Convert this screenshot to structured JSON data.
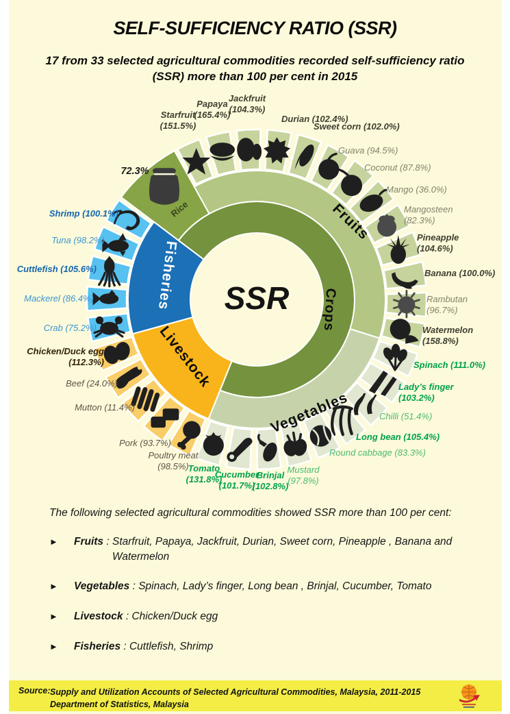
{
  "title": "SELF-SUFFICIENCY RATIO (SSR)",
  "subtitle": "17 from 33 selected agricultural commodities recorded self-sufficiency ratio (SSR) more than 100 per cent in 2015",
  "colors": {
    "background": "#FCFADA",
    "footer_bar": "#F3ED46",
    "crops_ring": "#75923E",
    "rice_sector": "#87A446",
    "fruits_ring": "#B3C683",
    "fruits_cell": "#C6D39C",
    "vegetables_ring": "#C6D3AA",
    "vegetables_cell": "#E1E7D0",
    "livestock_sector": "#F8B41A",
    "livestock_cell": "#F9CD67",
    "fisheries_sector": "#1B70B6",
    "fisheries_cell": "#57C1F0",
    "icon_silhouette": "#1F1F1F"
  },
  "chart_data": {
    "type": "pie",
    "variant": "multi-ring donut infographic (sunburst)",
    "center_label": "SSR",
    "units": "% self-sufficiency ratio, 2015",
    "legend": "none",
    "label_style": "italic; bold when SSR is 100% or more",
    "inner_ring": [
      {
        "name": "Crops",
        "color": "#75923E",
        "label_color": "#0d0d0d"
      },
      {
        "name": "Livestock",
        "color": "#F8B41A",
        "label_color": "#0d0d0d"
      },
      {
        "name": "Fisheries",
        "color": "#1B70B6",
        "label_color": "#FFFFFF"
      }
    ],
    "rice": {
      "name": "Rice",
      "value": 72.3,
      "label": "72.3%",
      "sector_color": "#87A446",
      "icon": "rice-sack-icon"
    },
    "layout": {
      "start_angle_deg": -29,
      "cell_span_deg": 10.5,
      "rice_arc_deg": [
        -53,
        -29
      ]
    },
    "groups": [
      {
        "name": "Fruits",
        "ring_color": "#B3C683",
        "cell_color": "#C6D39C",
        "bold_text_color": "#3F3F31",
        "text_color": "#83836C",
        "items": [
          {
            "name": "Starfruit",
            "value": 151.5,
            "above_100": true,
            "icon": "starfruit-icon",
            "lines": [
              "Starfruit",
              "(151.5%)"
            ]
          },
          {
            "name": "Papaya",
            "value": 165.4,
            "above_100": true,
            "icon": "papaya-icon",
            "lines": [
              "Papaya",
              "(165.4%)"
            ]
          },
          {
            "name": "Jackfruit",
            "value": 104.3,
            "above_100": true,
            "icon": "jackfruit-icon",
            "lines": [
              "Jackfruit",
              "(104.3%)"
            ]
          },
          {
            "name": "Durian",
            "value": 102.4,
            "above_100": true,
            "icon": "durian-icon",
            "lines": [
              "Durian (102.4%)"
            ]
          },
          {
            "name": "Sweet corn",
            "value": 102.0,
            "above_100": true,
            "icon": "corn-icon",
            "lines": [
              "Sweet corn (102.0%)"
            ]
          },
          {
            "name": "Guava",
            "value": 94.5,
            "above_100": false,
            "icon": "guava-icon",
            "lines": [
              "Guava (94.5%)"
            ]
          },
          {
            "name": "Coconut",
            "value": 87.8,
            "above_100": false,
            "icon": "coconut-icon",
            "lines": [
              "Coconut (87.8%)"
            ]
          },
          {
            "name": "Mango",
            "value": 36.0,
            "above_100": false,
            "icon": "mango-icon",
            "lines": [
              "Mango (36.0%)"
            ]
          },
          {
            "name": "Mangosteen",
            "value": 82.3,
            "above_100": false,
            "icon": "mangosteen-icon",
            "lines": [
              "Mangosteen",
              "(82.3%)"
            ]
          },
          {
            "name": "Pineapple",
            "value": 104.6,
            "above_100": true,
            "icon": "pineapple-icon",
            "lines": [
              "Pineapple",
              "(104.6%)"
            ]
          },
          {
            "name": "Banana",
            "value": 100.0,
            "above_100": true,
            "icon": "banana-icon",
            "lines": [
              "Banana (100.0%)"
            ]
          },
          {
            "name": "Rambutan",
            "value": 96.7,
            "above_100": false,
            "icon": "rambutan-icon",
            "lines": [
              "Rambutan",
              "(96.7%)"
            ]
          },
          {
            "name": "Watermelon",
            "value": 158.8,
            "above_100": true,
            "icon": "watermelon-icon",
            "lines": [
              "Watermelon",
              "(158.8%)"
            ]
          }
        ]
      },
      {
        "name": "Vegetables",
        "ring_color": "#C6D3AA",
        "cell_color": "#E1E7D0",
        "bold_text_color": "#00A04E",
        "text_color": "#4DB972",
        "items": [
          {
            "name": "Spinach",
            "value": 111.0,
            "above_100": true,
            "icon": "spinach-icon",
            "lines": [
              "Spinach (111.0%)"
            ]
          },
          {
            "name": "Lady’s finger",
            "value": 103.2,
            "above_100": true,
            "icon": "ladys-finger-icon",
            "lines": [
              "Lady’s finger",
              "(103.2%)"
            ]
          },
          {
            "name": "Chilli",
            "value": 51.4,
            "above_100": false,
            "icon": "chilli-icon",
            "lines": [
              "Chilli (51.4%)"
            ]
          },
          {
            "name": "Long bean",
            "value": 105.4,
            "above_100": true,
            "icon": "long-bean-icon",
            "lines": [
              "Long bean (105.4%)"
            ]
          },
          {
            "name": "Round cabbage",
            "value": 83.3,
            "above_100": false,
            "icon": "cabbage-icon",
            "lines": [
              "Round cabbage (83.3%)"
            ]
          },
          {
            "name": "Mustard",
            "value": 97.8,
            "above_100": false,
            "icon": "mustard-icon",
            "lines": [
              "Mustard",
              "(97.8%)"
            ]
          },
          {
            "name": "Brinjal",
            "value": 102.8,
            "above_100": true,
            "icon": "brinjal-icon",
            "lines": [
              "Brinjal",
              "(102.8%)"
            ]
          },
          {
            "name": "Cucumber",
            "value": 101.7,
            "above_100": true,
            "icon": "cucumber-icon",
            "lines": [
              "Cucumber",
              "(101.7%)"
            ]
          },
          {
            "name": "Tomato",
            "value": 131.8,
            "above_100": true,
            "icon": "tomato-icon",
            "lines": [
              "Tomato",
              "(131.8%)"
            ]
          }
        ]
      },
      {
        "name": "Livestock",
        "ring_color": "#F8B41A",
        "cell_color": "#F9CD67",
        "bold_text_color": "#33230C",
        "text_color": "#5F5447",
        "items": [
          {
            "name": "Poultry meat",
            "value": 98.5,
            "above_100": false,
            "icon": "poultry-icon",
            "lines": [
              "Poultry meat",
              "(98.5%)"
            ]
          },
          {
            "name": "Pork",
            "value": 93.7,
            "above_100": false,
            "icon": "pork-icon",
            "lines": [
              "Pork (93.7%)"
            ]
          },
          {
            "name": "Mutton",
            "value": 11.4,
            "above_100": false,
            "icon": "mutton-icon",
            "lines": [
              "Mutton (11.4%)"
            ]
          },
          {
            "name": "Beef",
            "value": 24.0,
            "above_100": false,
            "icon": "beef-icon",
            "lines": [
              "Beef (24.0%)"
            ]
          },
          {
            "name": "Chicken/Duck egg",
            "value": 112.3,
            "above_100": true,
            "icon": "eggs-icon",
            "lines": [
              "Chicken/Duck egg",
              "(112.3%)"
            ]
          }
        ]
      },
      {
        "name": "Fisheries",
        "ring_color": "#1B70B6",
        "cell_color": "#57C1F0",
        "bold_text_color": "#1566B0",
        "text_color": "#3C95D1",
        "items": [
          {
            "name": "Crab",
            "value": 75.2,
            "above_100": false,
            "icon": "crab-icon",
            "lines": [
              "Crab (75.2%)"
            ]
          },
          {
            "name": "Mackerel",
            "value": 86.4,
            "above_100": false,
            "icon": "mackerel-icon",
            "lines": [
              "Mackerel (86.4%)"
            ]
          },
          {
            "name": "Cuttlefish",
            "value": 105.6,
            "above_100": true,
            "icon": "cuttlefish-icon",
            "lines": [
              "Cuttlefish (105.6%)"
            ]
          },
          {
            "name": "Tuna",
            "value": 98.2,
            "above_100": false,
            "icon": "tuna-icon",
            "lines": [
              "Tuna (98.2%)"
            ]
          },
          {
            "name": "Shrimp",
            "value": 100.1,
            "above_100": true,
            "icon": "shrimp-icon",
            "lines": [
              "Shrimp (100.1%)"
            ]
          }
        ]
      }
    ]
  },
  "summary": {
    "intro": "The following selected agricultural commodities showed SSR more than 100 per cent:",
    "marker": "►",
    "separator": " : ",
    "bullets": [
      {
        "category": "Fruits",
        "items": "Starfruit,  Papaya,  Jackfruit,  Durian,  Sweet corn,  Pineapple ,  Banana and Watermelon"
      },
      {
        "category": "Vegetables",
        "items": "Spinach,  Lady’s finger,  Long bean ,  Brinjal,  Cucumber,  Tomato"
      },
      {
        "category": "Livestock",
        "items": "Chicken/Duck egg"
      },
      {
        "category": "Fisheries",
        "items": "Cuttlefish,  Shrimp"
      }
    ]
  },
  "footer": {
    "source_label": "Source:",
    "line1": "Supply  and Utilization Accounts of Selected Agricultural Commodities, Malaysia, 2011-2015",
    "line2": "Department of Statistics, Malaysia",
    "logo": "statistics-malaysia-globe-logo"
  }
}
